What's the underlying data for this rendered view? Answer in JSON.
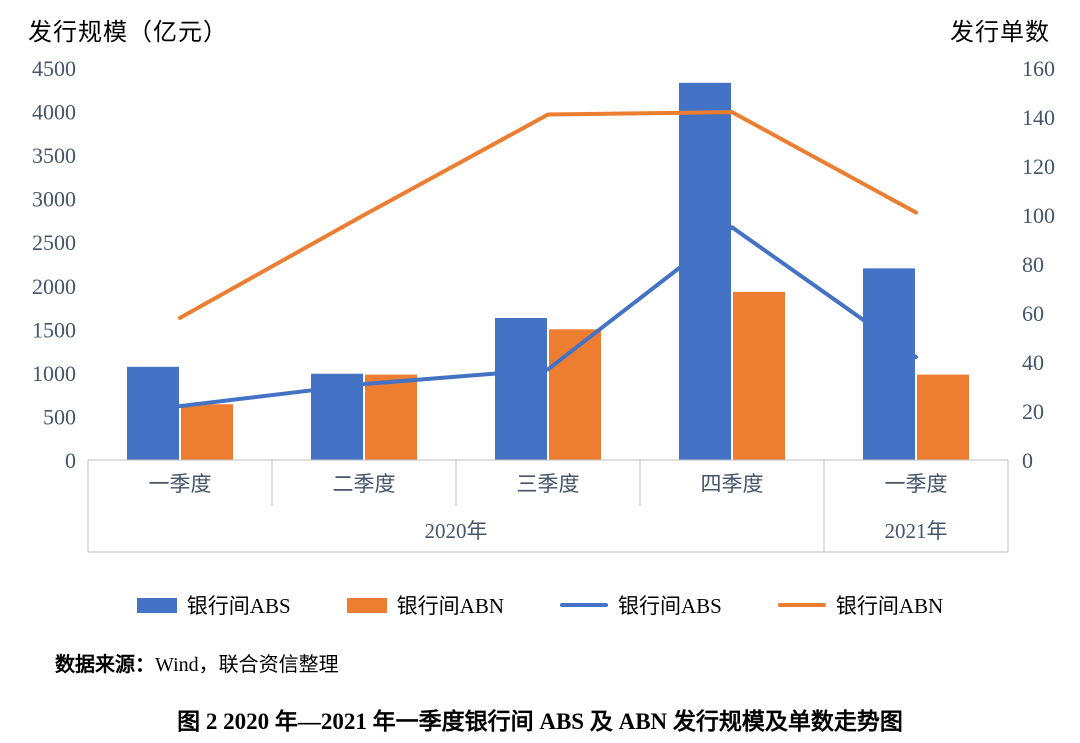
{
  "chart_data": {
    "type": "combo-bar-line",
    "categories": [
      "一季度",
      "二季度",
      "三季度",
      "四季度",
      "一季度"
    ],
    "year_groups": [
      {
        "label": "2020年",
        "span": 4
      },
      {
        "label": "2021年",
        "span": 1
      }
    ],
    "left_axis": {
      "title": "发行规模（亿元）",
      "min": 0,
      "max": 4500,
      "step": 500
    },
    "right_axis": {
      "title": "发行单数",
      "min": 0,
      "max": 160,
      "step": 20
    },
    "bar_series": [
      {
        "name": "银行间ABS",
        "color": "#4472C4",
        "axis": "left",
        "values": [
          1070,
          990,
          1630,
          4330,
          2200
        ]
      },
      {
        "name": "银行间ABN",
        "color": "#ED7D31",
        "axis": "left",
        "values": [
          640,
          980,
          1500,
          1930,
          980
        ]
      }
    ],
    "line_series": [
      {
        "name": "银行间ABS",
        "color": "#4472C4",
        "axis": "right",
        "values": [
          22,
          31,
          37,
          95,
          42
        ]
      },
      {
        "name": "银行间ABN",
        "color": "#ED7D31",
        "axis": "right",
        "values": [
          58,
          100,
          141,
          142,
          101
        ]
      }
    ],
    "grid": false,
    "legend_position": "bottom",
    "colors": {
      "abs_blue": "#4472C4",
      "abn_orange": "#ED7D31",
      "axis_text": "#44546A",
      "table_line": "#BFBFBF"
    }
  },
  "source": {
    "label": "数据来源：",
    "text": "Wind，联合资信整理"
  },
  "caption": "图 2  2020 年—2021 年一季度银行间 ABS 及 ABN 发行规模及单数走势图"
}
